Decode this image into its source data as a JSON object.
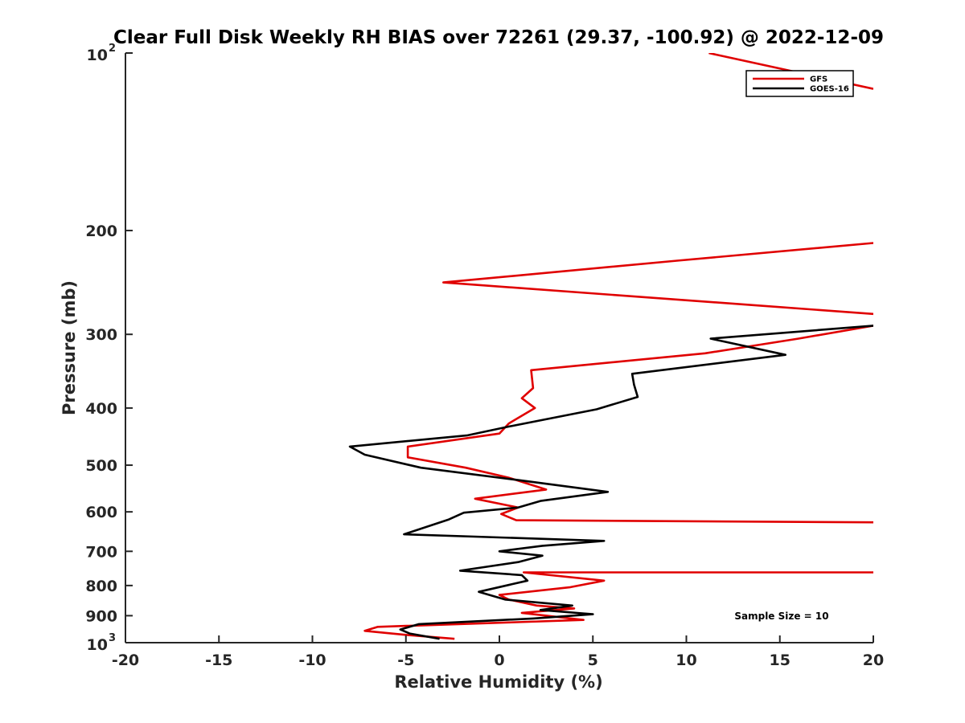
{
  "chart_data": {
    "type": "line",
    "title": "Clear Full Disk Weekly RH BIAS over 72261 (29.37, -100.92) @ 2022-12-09",
    "xlabel": "Relative Humidity (%)",
    "ylabel": "Pressure (mb)",
    "xlim": [
      -20,
      20
    ],
    "ylim": [
      100,
      1000
    ],
    "y_scale": "log",
    "y_reversed": true,
    "grid": false,
    "legend_position": "top-right",
    "x_ticks": [
      "-20",
      "-15",
      "-10",
      "-5",
      "0",
      "5",
      "10",
      "15",
      "20"
    ],
    "y_ticks": [
      {
        "value": 100,
        "base": "10",
        "exp": "2"
      },
      {
        "value": 200,
        "label": "200"
      },
      {
        "value": 300,
        "label": "300"
      },
      {
        "value": 400,
        "label": "400"
      },
      {
        "value": 500,
        "label": "500"
      },
      {
        "value": 600,
        "label": "600"
      },
      {
        "value": 700,
        "label": "700"
      },
      {
        "value": 800,
        "label": "800"
      },
      {
        "value": 900,
        "label": "900"
      },
      {
        "value": 1000,
        "base": "10",
        "exp": "3"
      }
    ],
    "annotation": "Sample Size = 10",
    "series": [
      {
        "name": "GFS",
        "color": "#e00000",
        "segments": [
          [
            [
              11.2,
              100
            ],
            [
              20.0,
              115
            ]
          ],
          [
            [
              20.0,
              210
            ],
            [
              9.5,
              225
            ],
            [
              -3.0,
              245
            ],
            [
              20.0,
              277
            ]
          ],
          [
            [
              20.0,
              290
            ],
            [
              16.0,
              305
            ],
            [
              11.0,
              323
            ],
            [
              1.7,
              345
            ],
            [
              1.8,
              370
            ],
            [
              1.2,
              385
            ],
            [
              1.9,
              400
            ],
            [
              0.5,
              425
            ],
            [
              0.0,
              442
            ],
            [
              -4.9,
              465
            ],
            [
              -4.9,
              485
            ],
            [
              -1.8,
              505
            ],
            [
              0.5,
              525
            ],
            [
              2.5,
              550
            ],
            [
              -1.3,
              570
            ],
            [
              1.0,
              590
            ],
            [
              0.1,
              605
            ],
            [
              0.9,
              620
            ],
            [
              20.0,
              625
            ]
          ],
          [
            [
              20.0,
              760
            ],
            [
              1.3,
              760
            ],
            [
              5.6,
              785
            ],
            [
              3.8,
              805
            ],
            [
              0.0,
              830
            ],
            [
              0.5,
              845
            ],
            [
              2.0,
              865
            ],
            [
              4.0,
              875
            ],
            [
              1.2,
              890
            ],
            [
              4.5,
              915
            ],
            [
              -6.5,
              940
            ],
            [
              -7.2,
              955
            ],
            [
              -5.0,
              970
            ],
            [
              -2.4,
              985
            ]
          ]
        ]
      },
      {
        "name": "GOES-16",
        "color": "#000000",
        "segments": [
          [
            [
              20.0,
              290
            ],
            [
              11.3,
              305
            ],
            [
              15.3,
              325
            ],
            [
              7.1,
              350
            ],
            [
              7.2,
              365
            ],
            [
              7.4,
              383
            ],
            [
              5.2,
              402
            ],
            [
              0.5,
              430
            ],
            [
              -1.7,
              445
            ],
            [
              -8.0,
              465
            ],
            [
              -7.2,
              480
            ],
            [
              -4.2,
              505
            ],
            [
              1.0,
              530
            ],
            [
              5.8,
              555
            ],
            [
              2.2,
              575
            ],
            [
              1.0,
              590
            ],
            [
              -1.9,
              602
            ],
            [
              -2.7,
              618
            ],
            [
              -5.1,
              655
            ],
            [
              5.6,
              672
            ],
            [
              2.3,
              685
            ],
            [
              0.0,
              700
            ],
            [
              2.3,
              712
            ],
            [
              1.0,
              730
            ],
            [
              -2.1,
              755
            ],
            [
              1.2,
              768
            ],
            [
              1.5,
              785
            ],
            [
              -1.1,
              820
            ],
            [
              0.3,
              845
            ],
            [
              3.9,
              865
            ],
            [
              2.2,
              880
            ],
            [
              5.0,
              895
            ],
            [
              1.8,
              910
            ],
            [
              -4.3,
              930
            ],
            [
              -5.3,
              950
            ],
            [
              -4.8,
              965
            ],
            [
              -3.2,
              985
            ]
          ]
        ]
      }
    ]
  }
}
